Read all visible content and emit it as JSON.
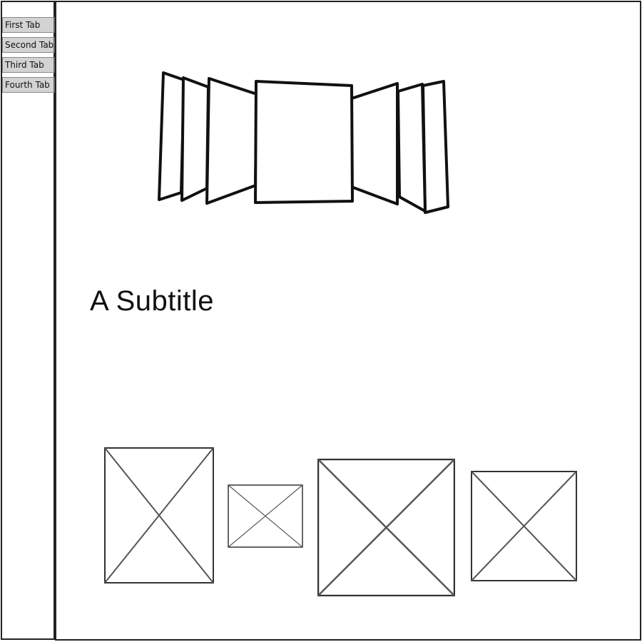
{
  "sidebar": {
    "tabs": [
      {
        "label": "First Tab"
      },
      {
        "label": "Second Tab"
      },
      {
        "label": "Third Tab"
      },
      {
        "label": "Fourth Tab"
      }
    ]
  },
  "main": {
    "subtitle": "A Subtitle"
  },
  "colors": {
    "tab_background": "#d3d3d3",
    "outline": "#222222",
    "placeholder_stroke": "#555555"
  },
  "icons": {
    "coverflow": "coverflow-carousel-icon",
    "image_placeholder": "image-placeholder-icon"
  }
}
